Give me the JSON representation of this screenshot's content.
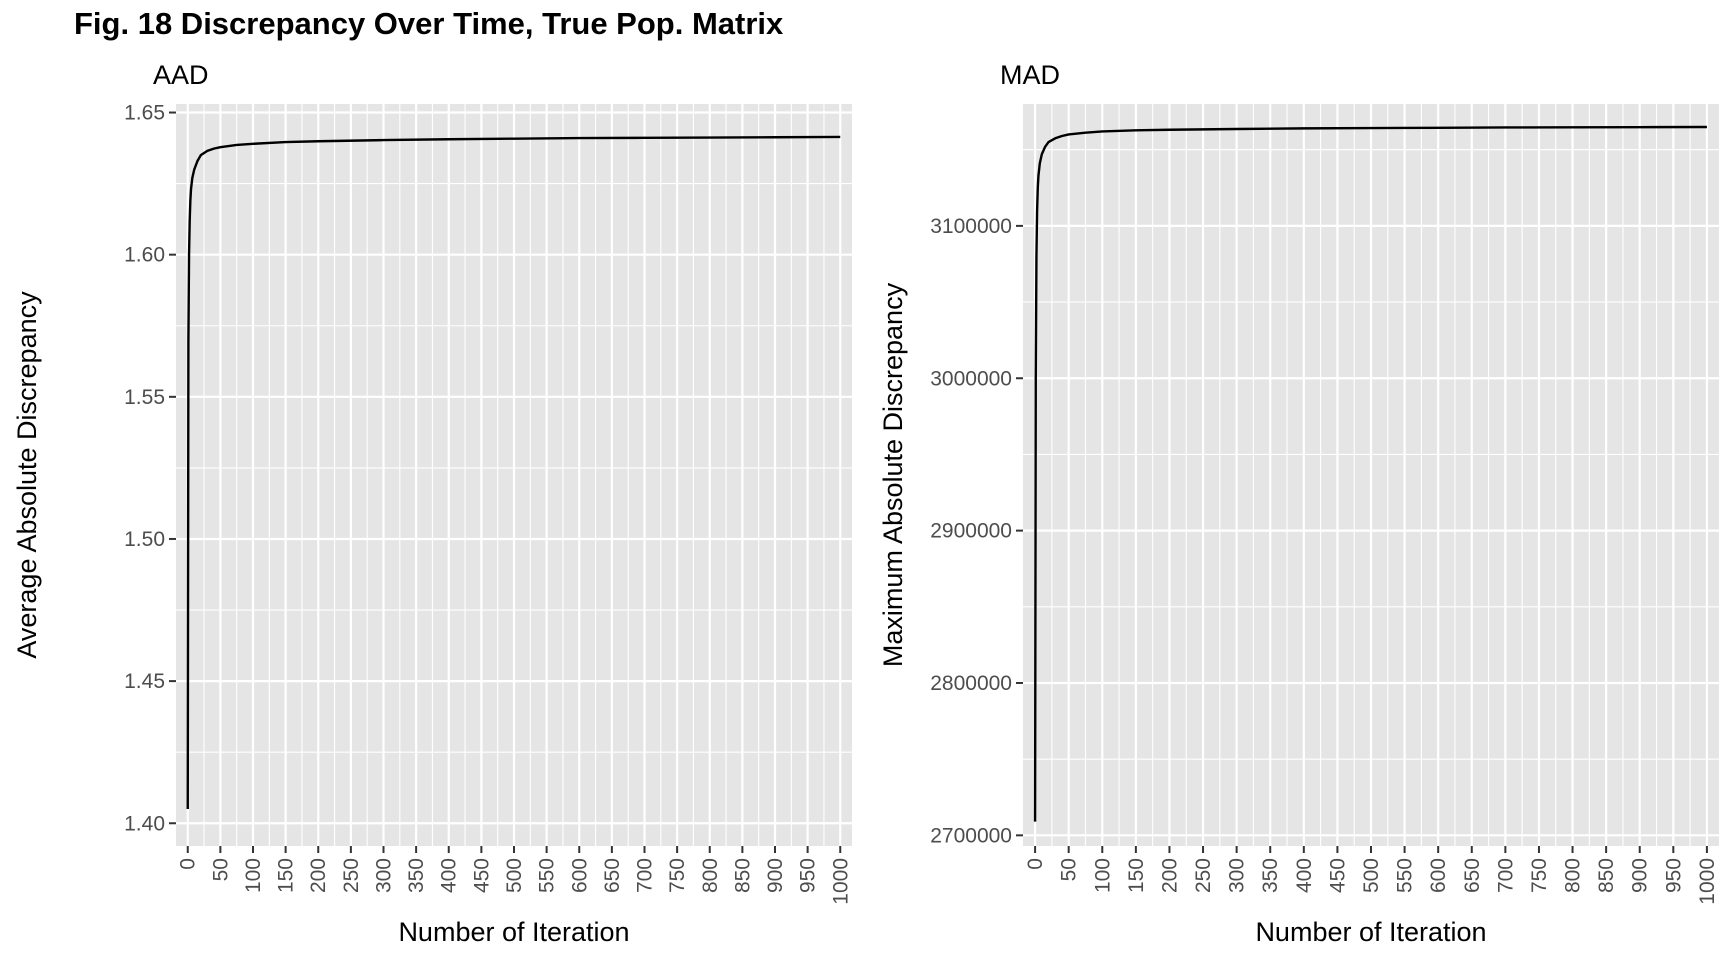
{
  "figure": {
    "title": "Fig. 18 Discrepancy Over Time, True Pop. Matrix"
  },
  "style": {
    "panel_background": "#e5e5e5",
    "grid_color": "#ffffff",
    "line_color": "#000000",
    "text_color": "#4d4d4d",
    "label_color": "#000000"
  },
  "chart_data": [
    {
      "type": "line",
      "title": "AAD",
      "xlabel": "Number of Iteration",
      "ylabel": "Average Absolute Discrepancy",
      "xlim": [
        -18,
        1018
      ],
      "ylim": [
        1.392,
        1.653
      ],
      "x_ticks": [
        0,
        50,
        100,
        150,
        200,
        250,
        300,
        350,
        400,
        450,
        500,
        550,
        600,
        650,
        700,
        750,
        800,
        850,
        900,
        950,
        1000
      ],
      "x_tick_labels": [
        "0",
        "50",
        "100",
        "150",
        "200",
        "250",
        "300",
        "350",
        "400",
        "450",
        "500",
        "550",
        "600",
        "650",
        "700",
        "750",
        "800",
        "850",
        "900",
        "950",
        "1000"
      ],
      "y_ticks": [
        1.4,
        1.45,
        1.5,
        1.55,
        1.6,
        1.65
      ],
      "y_tick_labels": [
        "1.40",
        "1.45",
        "1.50",
        "1.55",
        "1.60",
        "1.65"
      ],
      "grid": true,
      "series": [
        {
          "x": [
            0,
            1,
            2,
            3,
            4,
            5,
            7,
            10,
            15,
            20,
            30,
            40,
            50,
            75,
            100,
            150,
            200,
            300,
            400,
            500,
            600,
            700,
            800,
            900,
            1000
          ],
          "y": [
            1.405,
            1.57,
            1.6,
            1.612,
            1.619,
            1.623,
            1.627,
            1.63,
            1.633,
            1.635,
            1.6365,
            1.6373,
            1.6378,
            1.6386,
            1.639,
            1.6396,
            1.6399,
            1.6403,
            1.6406,
            1.6408,
            1.641,
            1.6411,
            1.6412,
            1.6413,
            1.6414
          ]
        }
      ]
    },
    {
      "type": "line",
      "title": "MAD",
      "xlabel": "Number of Iteration",
      "ylabel": "Maximum Absolute Discrepancy",
      "xlim": [
        -18,
        1018
      ],
      "ylim": [
        2693000,
        3180000
      ],
      "x_ticks": [
        0,
        50,
        100,
        150,
        200,
        250,
        300,
        350,
        400,
        450,
        500,
        550,
        600,
        650,
        700,
        750,
        800,
        850,
        900,
        950,
        1000
      ],
      "x_tick_labels": [
        "0",
        "50",
        "100",
        "150",
        "200",
        "250",
        "300",
        "350",
        "400",
        "450",
        "500",
        "550",
        "600",
        "650",
        "700",
        "750",
        "800",
        "850",
        "900",
        "950",
        "1000"
      ],
      "y_ticks": [
        2700000,
        2800000,
        2900000,
        3000000,
        3100000
      ],
      "y_tick_labels": [
        "2700000",
        "2800000",
        "2900000",
        "3000000",
        "3100000"
      ],
      "grid": true,
      "series": [
        {
          "x": [
            0,
            1,
            2,
            3,
            4,
            5,
            7,
            10,
            15,
            20,
            30,
            40,
            50,
            75,
            100,
            150,
            200,
            300,
            400,
            500,
            600,
            700,
            800,
            900,
            1000
          ],
          "y": [
            2709000,
            3000000,
            3080000,
            3110000,
            3125000,
            3133000,
            3141000,
            3147000,
            3152000,
            3155000,
            3157500,
            3159000,
            3160000,
            3161200,
            3162000,
            3162700,
            3163100,
            3163600,
            3164000,
            3164200,
            3164400,
            3164600,
            3164700,
            3164800,
            3164900
          ]
        }
      ]
    }
  ]
}
